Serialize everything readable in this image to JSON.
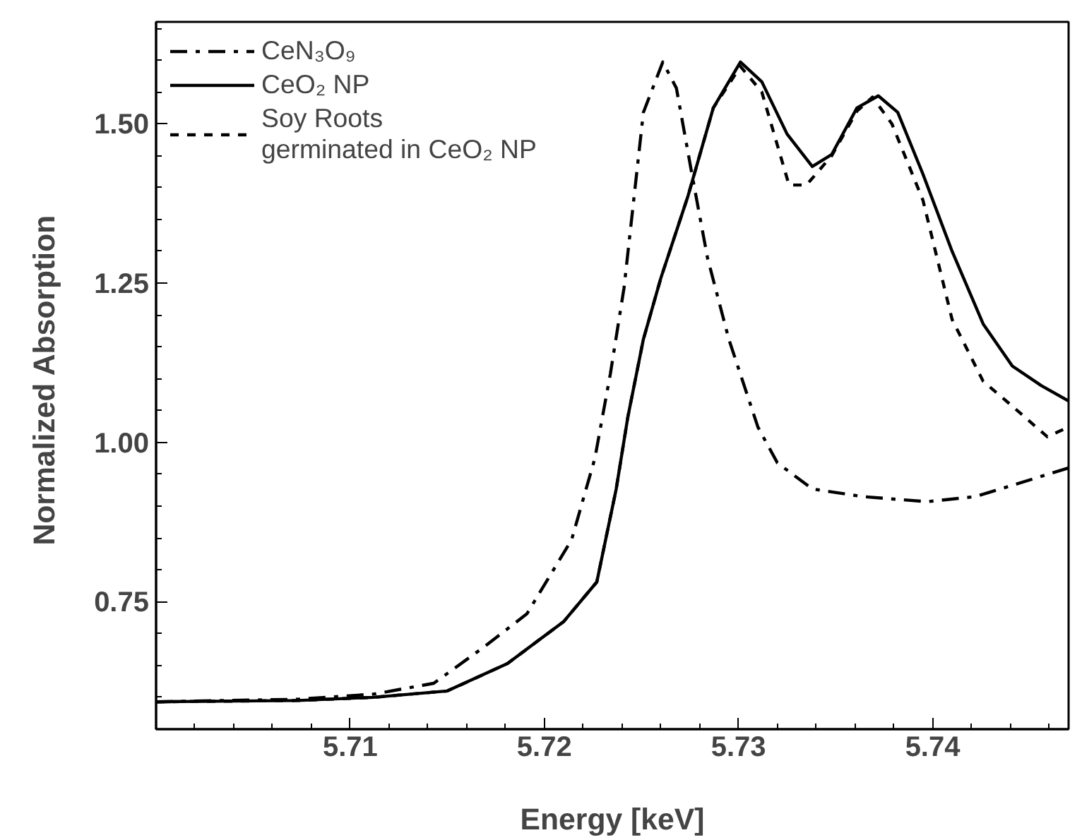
{
  "chart_data": {
    "type": "line",
    "xlabel": "Energy [keV]",
    "ylabel": "Normalized  Absorption",
    "xlim": [
      5.7,
      5.747
    ],
    "ylim": [
      0.55,
      1.66
    ],
    "xticks": [
      {
        "value": 5.7,
        "label": null
      },
      5.71,
      5.72,
      5.73,
      5.74
    ],
    "yticks": [
      0.75,
      {
        "value": 1.0,
        "label": "1.00"
      },
      1.25,
      {
        "value": 1.5,
        "label": "1.50"
      }
    ],
    "grid": false,
    "legend": "top left",
    "marker": "none",
    "series": [
      {
        "name": "CeN₃O₉",
        "color": "#000000",
        "line_style": "dashdot",
        "x": [
          5.7,
          5.7073,
          5.7112,
          5.7143,
          5.7168,
          5.7191,
          5.7214,
          5.7226,
          5.7234,
          5.7241,
          5.7251,
          5.7261,
          5.7268,
          5.7276,
          5.7284,
          5.7295,
          5.731,
          5.732,
          5.7338,
          5.7364,
          5.7397,
          5.7422,
          5.7453,
          5.747
        ],
        "values": [
          0.593,
          0.597,
          0.605,
          0.622,
          0.677,
          0.731,
          0.847,
          0.975,
          1.108,
          1.242,
          1.518,
          1.597,
          1.556,
          1.421,
          1.29,
          1.162,
          1.024,
          0.968,
          0.927,
          0.915,
          0.907,
          0.915,
          0.944,
          0.96
        ]
      },
      {
        "name": "CeO₂ NP",
        "color": "#000000",
        "line_style": "solid",
        "x": [
          5.7,
          5.7073,
          5.7112,
          5.715,
          5.7181,
          5.721,
          5.7227,
          5.7237,
          5.7243,
          5.7251,
          5.726,
          5.7274,
          5.7287,
          5.7301,
          5.7312,
          5.7325,
          5.7338,
          5.7348,
          5.7361,
          5.7372,
          5.7382,
          5.7395,
          5.741,
          5.7426,
          5.7441,
          5.7456,
          5.747
        ],
        "values": [
          0.593,
          0.595,
          0.6,
          0.61,
          0.653,
          0.719,
          0.781,
          0.927,
          1.04,
          1.162,
          1.258,
          1.387,
          1.525,
          1.597,
          1.566,
          1.484,
          1.433,
          1.452,
          1.525,
          1.544,
          1.518,
          1.421,
          1.3,
          1.186,
          1.12,
          1.089,
          1.065
        ]
      },
      {
        "name": "Soy Roots\ngerminated in CeO₂ NP",
        "color": "#000000",
        "line_style": "dashed",
        "x": [
          5.7,
          5.7073,
          5.7112,
          5.715,
          5.7181,
          5.721,
          5.7227,
          5.7237,
          5.7243,
          5.7251,
          5.726,
          5.7274,
          5.7287,
          5.7301,
          5.7312,
          5.7326,
          5.7335,
          5.7348,
          5.7361,
          5.7369,
          5.7379,
          5.7395,
          5.741,
          5.7426,
          5.7441,
          5.7459,
          5.747
        ],
        "values": [
          0.593,
          0.595,
          0.6,
          0.61,
          0.653,
          0.719,
          0.781,
          0.927,
          1.04,
          1.162,
          1.258,
          1.387,
          1.525,
          1.59,
          1.55,
          1.404,
          1.404,
          1.45,
          1.52,
          1.542,
          1.5,
          1.38,
          1.193,
          1.096,
          1.057,
          1.009,
          1.024
        ]
      }
    ]
  }
}
